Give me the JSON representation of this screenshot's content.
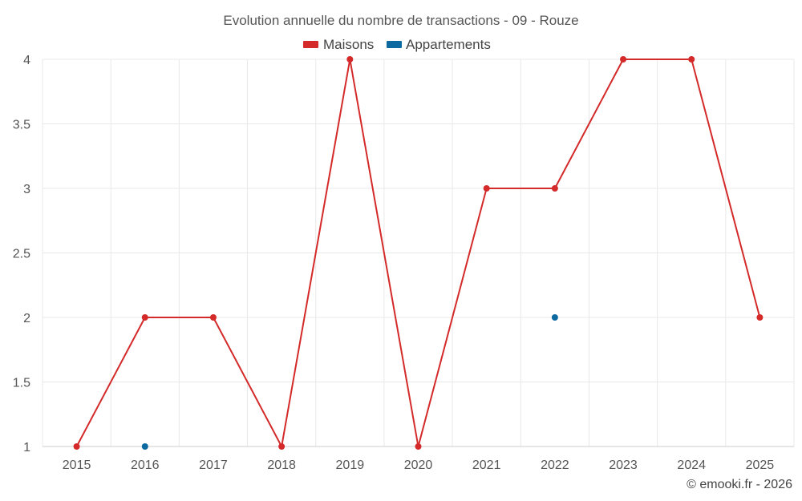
{
  "chart_data": {
    "type": "line",
    "title": "Evolution annuelle du nombre de transactions - 09 - Rouze",
    "categories": [
      "2015",
      "2016",
      "2017",
      "2018",
      "2019",
      "2020",
      "2021",
      "2022",
      "2023",
      "2024",
      "2025"
    ],
    "series": [
      {
        "name": "Maisons",
        "color": "#d42a2a",
        "values": [
          1,
          2,
          2,
          1,
          4,
          1,
          3,
          3,
          4,
          4,
          2
        ]
      },
      {
        "name": "Appartements",
        "color": "#0d6aa0",
        "values": [
          null,
          1,
          null,
          null,
          null,
          null,
          null,
          2,
          null,
          null,
          null
        ]
      }
    ],
    "y_ticks": [
      "1",
      "1.5",
      "2",
      "2.5",
      "3",
      "3.5",
      "4"
    ],
    "ylim": [
      1,
      4
    ],
    "grid": true,
    "legend": "top-center"
  },
  "credit": "© emooki.fr - 2026"
}
